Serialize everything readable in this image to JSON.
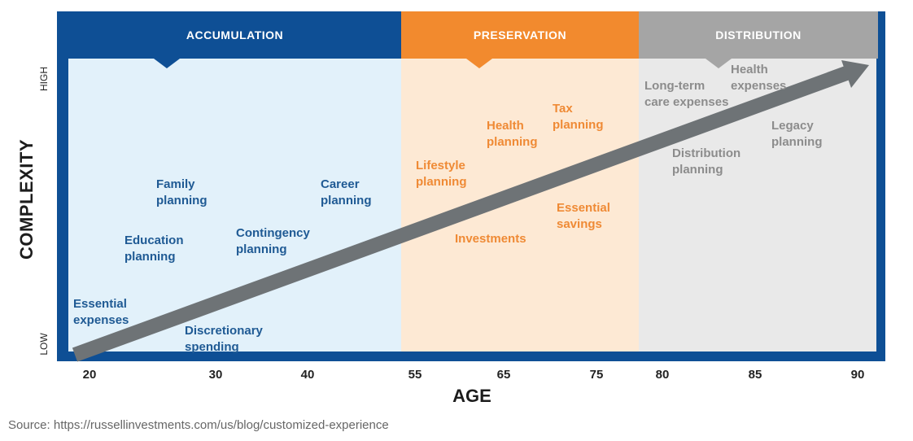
{
  "phases": [
    {
      "id": "accumulation",
      "title": "ACCUMULATION",
      "color": "#0e4f95"
    },
    {
      "id": "preservation",
      "title": "PRESERVATION",
      "color": "#f28a2e"
    },
    {
      "id": "distribution",
      "title": "DISTRIBUTION",
      "color": "#a5a5a5"
    }
  ],
  "zone_colors": {
    "accumulation": "#e2f1fa",
    "preservation": "#fde9d4",
    "distribution": "#e9e9e9"
  },
  "arrow_color": "#6e7376",
  "y_axis": {
    "title": "COMPLEXITY",
    "high": "HIGH",
    "low": "LOW"
  },
  "x_axis": {
    "title": "AGE",
    "ticks": [
      "20",
      "30",
      "40",
      "55",
      "65",
      "75",
      "80",
      "85",
      "90"
    ]
  },
  "labels": {
    "essential_expenses": [
      "Essential",
      "expenses"
    ],
    "education_planning": [
      "Education",
      "planning"
    ],
    "family_planning": [
      "Family",
      "planning"
    ],
    "discretionary_spending": [
      "Discretionary",
      "spending"
    ],
    "contingency_planning": [
      "Contingency",
      "planning"
    ],
    "career_planning": [
      "Career",
      "planning"
    ],
    "lifestyle_planning": [
      "Lifestyle",
      "planning"
    ],
    "health_planning": [
      "Health",
      "planning"
    ],
    "tax_planning": [
      "Tax",
      "planning"
    ],
    "investments": [
      "Investments"
    ],
    "essential_savings": [
      "Essential",
      "savings"
    ],
    "long_term_care": [
      "Long-term",
      "care expenses"
    ],
    "health_expenses": [
      "Health",
      "expenses"
    ],
    "legacy_planning": [
      "Legacy",
      "planning"
    ],
    "distribution_planning": [
      "Distribution",
      "planning"
    ]
  },
  "source": "Source: https://russellinvestments.com/us/blog/customized-experience"
}
